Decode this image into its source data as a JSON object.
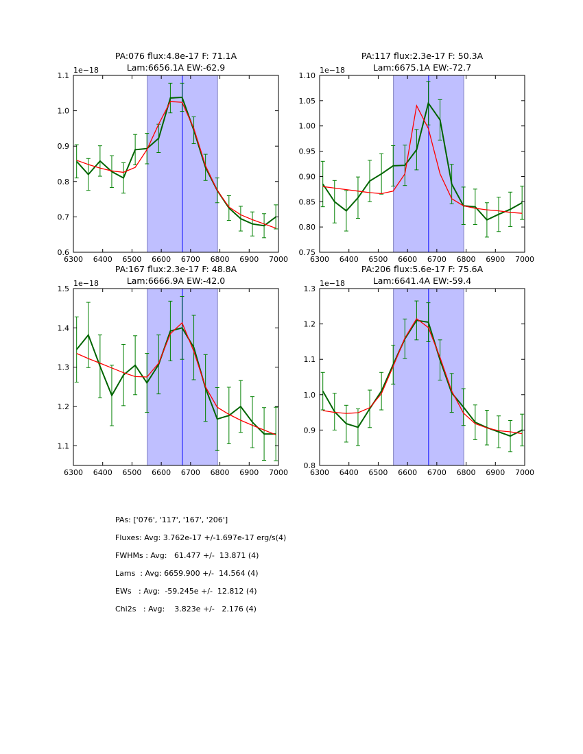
{
  "colors": {
    "data": "#006400",
    "errorbar": "#008000",
    "model": "#ff0000",
    "band": "#bfbfff",
    "center_line": "#0000ff"
  },
  "chart_data": [
    {
      "type": "line",
      "title_line1": "PA:076 flux:4.8e-17 F: 71.1A",
      "title_line2": "Lam:6656.1A EW:-62.9",
      "offset_label": "1e−18",
      "xlim": [
        6300,
        7000
      ],
      "ylim": [
        0.6,
        1.1
      ],
      "xticks": [
        "6300",
        "6400",
        "6500",
        "6600",
        "6700",
        "6800",
        "6900",
        "7000"
      ],
      "yticks": [
        "0.6",
        "0.7",
        "0.8",
        "0.9",
        "1.0",
        "1.1"
      ],
      "band": [
        6552,
        6792
      ],
      "center": 6672,
      "x": [
        6311,
        6351,
        6391,
        6431,
        6471,
        6511,
        6551,
        6591,
        6631,
        6671,
        6711,
        6751,
        6791,
        6831,
        6871,
        6911,
        6951,
        6991
      ],
      "data": [
        0.857,
        0.82,
        0.858,
        0.828,
        0.81,
        0.89,
        0.893,
        0.922,
        1.036,
        1.038,
        0.945,
        0.84,
        0.775,
        0.725,
        0.695,
        0.68,
        0.675,
        0.7
      ],
      "err": [
        0.047,
        0.045,
        0.043,
        0.045,
        0.043,
        0.043,
        0.043,
        0.04,
        0.042,
        0.04,
        0.038,
        0.037,
        0.035,
        0.035,
        0.035,
        0.034,
        0.034,
        0.034
      ],
      "model": [
        0.86,
        0.848,
        0.838,
        0.83,
        0.826,
        0.84,
        0.89,
        0.962,
        1.026,
        1.024,
        0.95,
        0.845,
        0.775,
        0.728,
        0.706,
        0.692,
        0.68,
        0.668
      ]
    },
    {
      "type": "line",
      "title_line1": "PA:117 flux:2.3e-17 F: 50.3A",
      "title_line2": "Lam:6675.1A EW:-72.7",
      "offset_label": "1e−18",
      "xlim": [
        6300,
        7000
      ],
      "ylim": [
        0.75,
        1.1
      ],
      "xticks": [
        "6300",
        "6400",
        "6500",
        "6600",
        "6700",
        "6800",
        "6900",
        "7000"
      ],
      "yticks": [
        "0.75",
        "0.80",
        "0.85",
        "0.90",
        "0.95",
        "1.00",
        "1.05",
        "1.10"
      ],
      "band": [
        6552,
        6792
      ],
      "center": 6672,
      "x": [
        6311,
        6351,
        6391,
        6431,
        6471,
        6511,
        6551,
        6591,
        6631,
        6671,
        6711,
        6751,
        6791,
        6831,
        6871,
        6911,
        6951,
        6991
      ],
      "data": [
        0.885,
        0.85,
        0.832,
        0.858,
        0.891,
        0.905,
        0.921,
        0.922,
        0.953,
        1.045,
        1.012,
        0.885,
        0.842,
        0.84,
        0.814,
        0.825,
        0.835,
        0.848
      ],
      "err": [
        0.045,
        0.042,
        0.04,
        0.041,
        0.041,
        0.04,
        0.04,
        0.04,
        0.04,
        0.043,
        0.04,
        0.039,
        0.037,
        0.035,
        0.034,
        0.034,
        0.034,
        0.033
      ],
      "model": [
        0.88,
        0.877,
        0.874,
        0.871,
        0.868,
        0.866,
        0.871,
        0.905,
        1.04,
        0.995,
        0.905,
        0.856,
        0.842,
        0.837,
        0.834,
        0.832,
        0.829,
        0.827
      ]
    },
    {
      "type": "line",
      "title_line1": "PA:167 flux:2.3e-17 F: 48.8A",
      "title_line2": "Lam:6666.9A EW:-42.0",
      "offset_label": "1e−18",
      "xlim": [
        6300,
        7000
      ],
      "ylim": [
        1.05,
        1.5
      ],
      "xticks": [
        "6300",
        "6400",
        "6500",
        "6600",
        "6700",
        "6800",
        "6900",
        "7000"
      ],
      "yticks": [
        "1.1",
        "1.2",
        "1.3",
        "1.4",
        "1.5"
      ],
      "band": [
        6552,
        6792
      ],
      "center": 6672,
      "x": [
        6311,
        6351,
        6391,
        6431,
        6471,
        6511,
        6551,
        6591,
        6631,
        6671,
        6711,
        6751,
        6791,
        6831,
        6871,
        6911,
        6951,
        6991
      ],
      "data": [
        1.345,
        1.382,
        1.302,
        1.228,
        1.28,
        1.305,
        1.26,
        1.307,
        1.392,
        1.4,
        1.35,
        1.247,
        1.168,
        1.177,
        1.2,
        1.16,
        1.13,
        1.13
      ],
      "err": [
        0.083,
        0.083,
        0.08,
        0.077,
        0.078,
        0.075,
        0.075,
        0.075,
        0.076,
        0.08,
        0.082,
        0.085,
        0.08,
        0.072,
        0.066,
        0.065,
        0.067,
        0.068
      ],
      "model": [
        1.335,
        1.322,
        1.31,
        1.298,
        1.286,
        1.276,
        1.275,
        1.31,
        1.385,
        1.413,
        1.34,
        1.25,
        1.198,
        1.18,
        1.165,
        1.152,
        1.14,
        1.128
      ]
    },
    {
      "type": "line",
      "title_line1": "PA:206 flux:5.6e-17 F: 75.6A",
      "title_line2": "Lam:6641.4A EW:-59.4",
      "offset_label": "1e−18",
      "xlim": [
        6300,
        7000
      ],
      "ylim": [
        0.8,
        1.3
      ],
      "xticks": [
        "6300",
        "6400",
        "6500",
        "6600",
        "6700",
        "6800",
        "6900",
        "7000"
      ],
      "yticks": [
        "0.8",
        "0.9",
        "1.0",
        "1.1",
        "1.2",
        "1.3"
      ],
      "band": [
        6552,
        6792
      ],
      "center": 6672,
      "x": [
        6311,
        6351,
        6391,
        6431,
        6471,
        6511,
        6551,
        6591,
        6631,
        6671,
        6711,
        6751,
        6791,
        6831,
        6871,
        6911,
        6951,
        6991
      ],
      "data": [
        1.01,
        0.952,
        0.918,
        0.908,
        0.96,
        1.01,
        1.085,
        1.158,
        1.21,
        1.205,
        1.098,
        1.005,
        0.965,
        0.922,
        0.907,
        0.895,
        0.883,
        0.9
      ],
      "err": [
        0.053,
        0.052,
        0.052,
        0.052,
        0.053,
        0.053,
        0.055,
        0.056,
        0.055,
        0.055,
        0.057,
        0.055,
        0.052,
        0.049,
        0.049,
        0.045,
        0.044,
        0.045
      ],
      "model": [
        0.955,
        0.95,
        0.947,
        0.949,
        0.963,
        1.003,
        1.08,
        1.16,
        1.215,
        1.19,
        1.105,
        1.01,
        0.948,
        0.918,
        0.906,
        0.898,
        0.895,
        0.89
      ]
    }
  ],
  "stats": {
    "pas": "PAs: ['076', '117', '167', '206']",
    "fluxes": "Fluxes: Avg: 3.762e-17 +/-1.697e-17 erg/s(4)",
    "fwhms": "FWHMs : Avg:   61.477 +/-  13.871 (4)",
    "lams": "Lams  : Avg: 6659.900 +/-  14.564 (4)",
    "ews": "EWs   : Avg:  -59.245e +/-  12.812 (4)",
    "chi2s": "Chi2s   : Avg:    3.823e +/-   2.176 (4)"
  }
}
